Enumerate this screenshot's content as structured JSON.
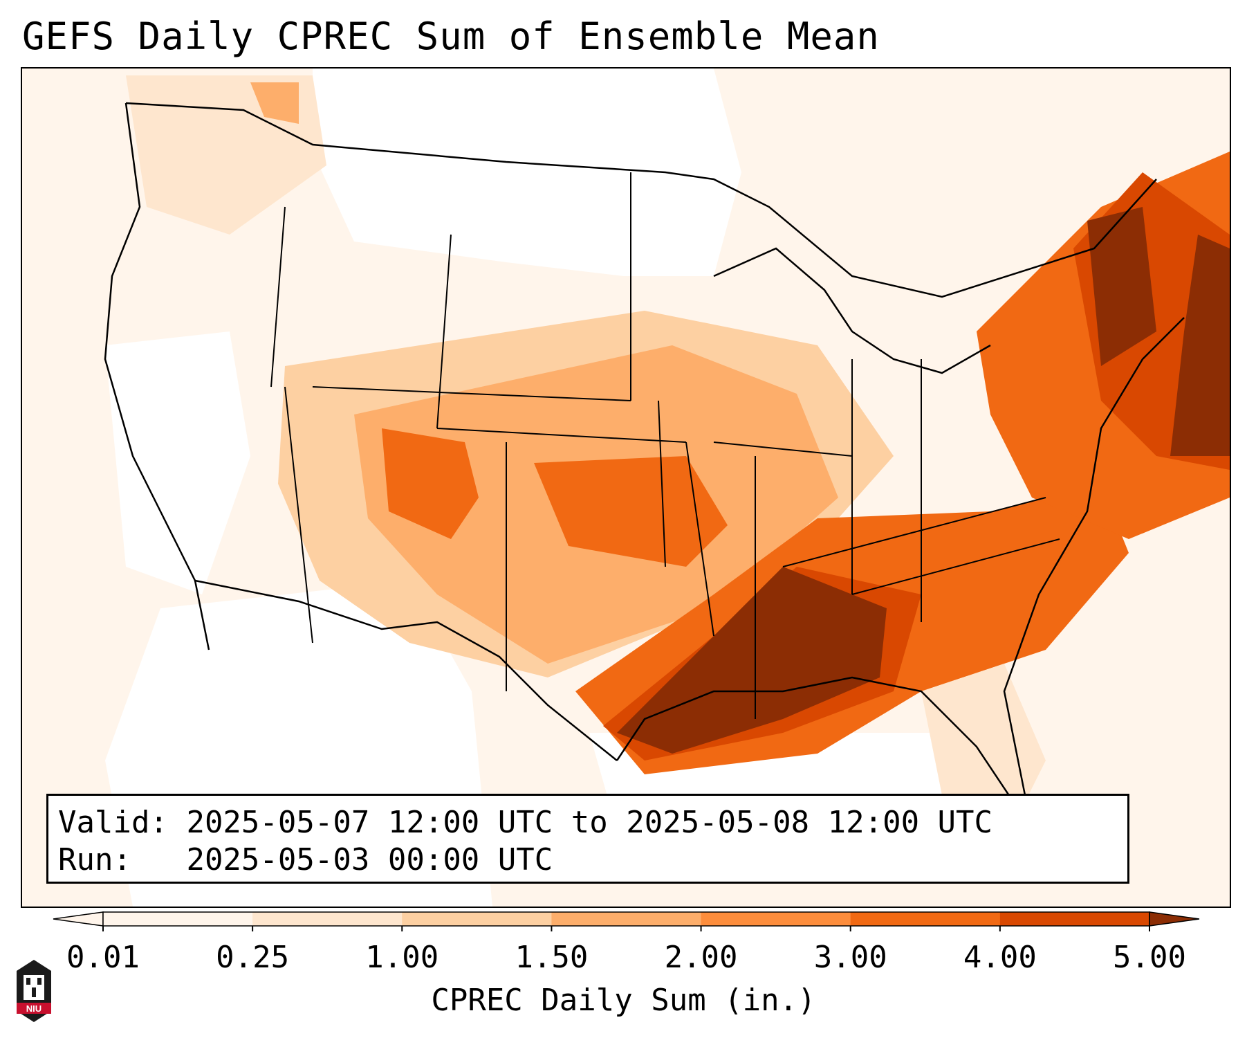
{
  "title": "GEFS Daily CPREC Sum of Ensemble Mean",
  "info": {
    "valid_label": "Valid:",
    "valid_value": "2025-05-07 12:00 UTC to 2025-05-08 12:00 UTC",
    "run_label": "Run:",
    "run_value": "2025-05-03 00:00 UTC"
  },
  "colorbar": {
    "label": "CPREC Daily Sum (in.)",
    "ticks": [
      "0.01",
      "0.25",
      "1.00",
      "1.50",
      "2.00",
      "3.00",
      "4.00",
      "5.00"
    ],
    "colors": [
      "#fff5eb",
      "#fee6ce",
      "#fdd0a2",
      "#fdae6b",
      "#fd8d3c",
      "#f16913",
      "#d94801",
      "#8c2d04"
    ],
    "extend": "both"
  },
  "logo": {
    "text": "NIU",
    "accent": "#c8102e"
  },
  "precip_scale_colors": {
    "none": "#ffffff",
    "trace": "#fff5eb",
    "light": "#fee6ce",
    "light_moderate": "#fdd0a2",
    "moderate": "#fdae6b",
    "moderate_heavy": "#fd8d3c",
    "heavy": "#f16913",
    "very_heavy": "#d94801",
    "extreme": "#8c2d04"
  }
}
